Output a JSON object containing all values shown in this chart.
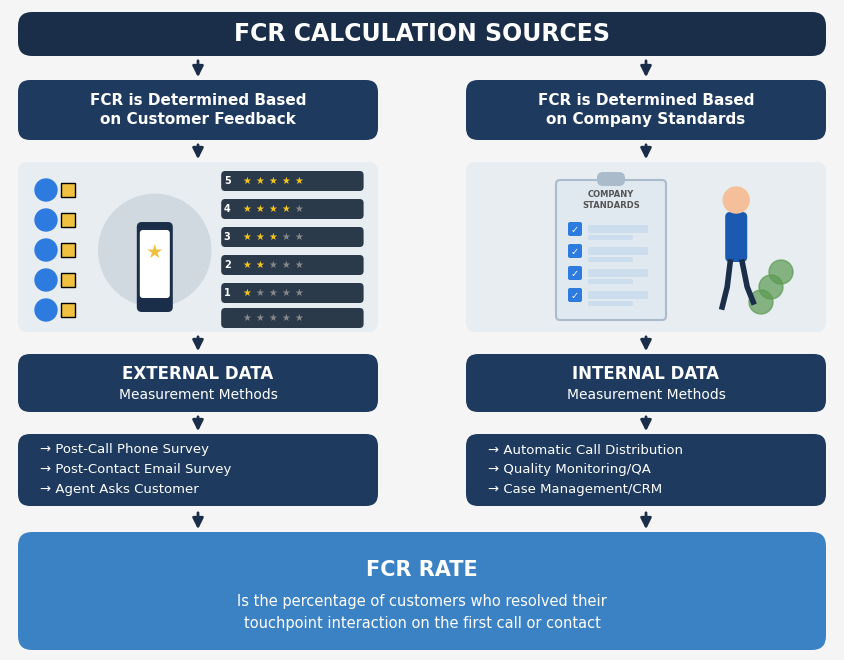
{
  "title": "FCR CALCULATION SOURCES",
  "title_bg": "#1a2e4a",
  "title_color": "#ffffff",
  "left_box1_text": "FCR is Determined Based\non Customer Feedback",
  "right_box1_text": "FCR is Determined Based\non Company Standards",
  "left_box2_title": "EXTERNAL DATA",
  "left_box2_sub": "Measurement Methods",
  "right_box2_title": "INTERNAL DATA",
  "right_box2_sub": "Measurement Methods",
  "left_box3_lines": [
    "→ Post-Call Phone Survey",
    "→ Post-Contact Email Survey",
    "→ Agent Asks Customer"
  ],
  "right_box3_lines": [
    "→ Automatic Call Distribution",
    "→ Quality Monitoring/QA",
    "→ Case Management/CRM"
  ],
  "bottom_title": "FCR RATE",
  "bottom_sub": "Is the percentage of customers who resolved their\ntouchpoint interaction on the first call or contact",
  "dark_navy": "#1a2e4a",
  "medium_blue": "#1e3a5f",
  "light_blue_bottom": "#3b82c4",
  "arrow_color": "#1a2e4a",
  "bg_color": "#f5f5f5",
  "box_text_color": "#ffffff",
  "bottom_title_color": "#ffffff",
  "bottom_sub_color": "#ffffff",
  "img_bg": "#e8edf2",
  "img_circle_left": "#d0d8e0"
}
